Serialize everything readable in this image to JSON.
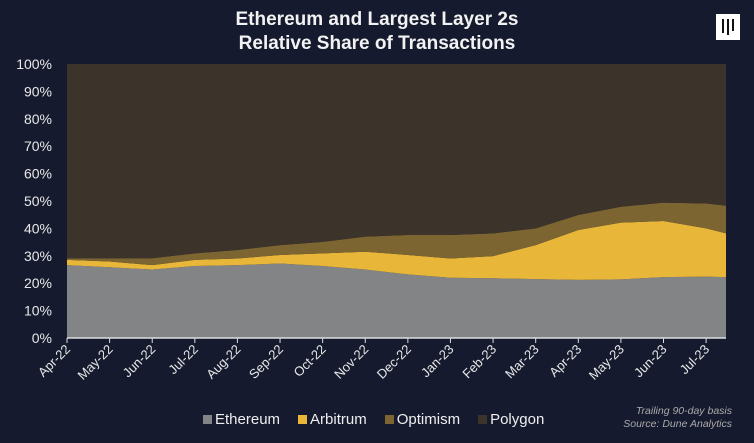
{
  "chart_data": {
    "type": "area",
    "stacked": true,
    "title": "Ethereum and Largest Layer 2s",
    "subtitle": "Relative Share of Transactions",
    "x": [
      "2022-04-01",
      "2022-05-01",
      "2022-06-01",
      "2022-07-01",
      "2022-08-01",
      "2022-09-01",
      "2022-10-01",
      "2022-11-01",
      "2022-12-01",
      "2023-01-01",
      "2023-02-01",
      "2023-03-01",
      "2023-04-01",
      "2023-05-01",
      "2023-06-01",
      "2023-07-01",
      "2023-07-15"
    ],
    "tick_labels": [
      "Apr-22",
      "May-22",
      "Jun-22",
      "Jul-22",
      "Aug-22",
      "Sep-22",
      "Oct-22",
      "Nov-22",
      "Dec-22",
      "Jan-23",
      "Feb-23",
      "Mar-23",
      "Apr-23",
      "May-23",
      "Jun-23",
      "Jul-23"
    ],
    "y_ticks": [
      "0%",
      "10%",
      "20%",
      "30%",
      "40%",
      "50%",
      "60%",
      "70%",
      "80%",
      "90%",
      "100%"
    ],
    "ylim": [
      0,
      100
    ],
    "grid": false,
    "legend_position": "bottom",
    "series": [
      {
        "name": "Ethereum",
        "color": "#838486",
        "values": [
          26.6,
          25.8,
          25.0,
          26.3,
          26.6,
          27.2,
          26.3,
          25.0,
          23.2,
          22.0,
          21.8,
          21.5,
          21.2,
          21.4,
          22.2,
          22.4,
          22.2
        ]
      },
      {
        "name": "Arbitrum",
        "color": "#e8b73a",
        "values": [
          1.9,
          2.1,
          1.6,
          2.2,
          2.4,
          3.1,
          4.6,
          6.5,
          7.1,
          7.0,
          8.1,
          12.4,
          18.2,
          20.7,
          20.5,
          17.6,
          16.0
        ]
      },
      {
        "name": "Optimism",
        "color": "#7d6532",
        "values": [
          0.6,
          1.2,
          2.5,
          2.4,
          3.1,
          3.6,
          4.2,
          5.5,
          7.3,
          8.6,
          8.3,
          6.1,
          5.5,
          5.8,
          6.7,
          9.1,
          10.1
        ]
      },
      {
        "name": "Polygon",
        "color": "#3c342b",
        "values": [
          70.9,
          70.9,
          70.9,
          69.1,
          67.9,
          66.1,
          64.9,
          63.0,
          62.4,
          62.4,
          61.8,
          60.0,
          55.1,
          52.1,
          50.6,
          50.9,
          51.7
        ]
      }
    ],
    "annotations": [
      "Trailing 90-day basis",
      "Source: Dune Analytics"
    ]
  },
  "background": "#151a2e"
}
